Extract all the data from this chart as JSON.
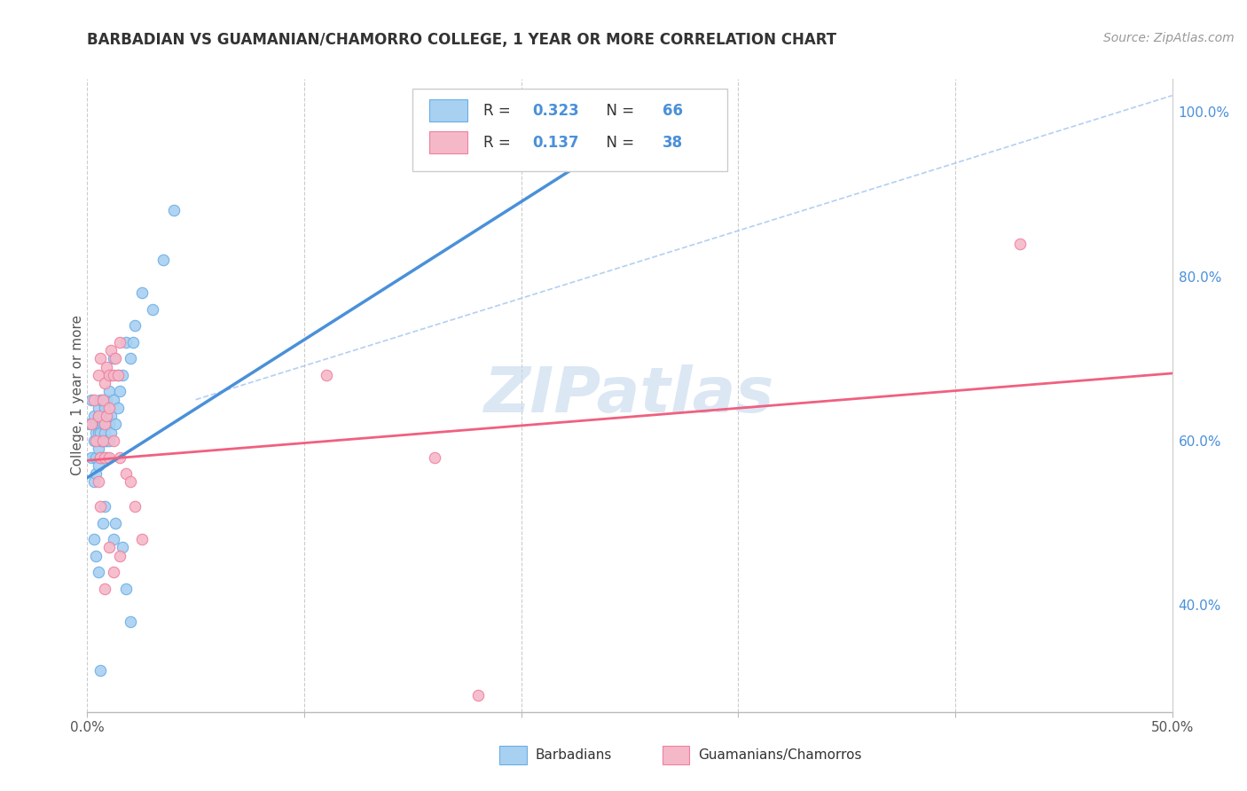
{
  "title": "BARBADIAN VS GUAMANIAN/CHAMORRO COLLEGE, 1 YEAR OR MORE CORRELATION CHART",
  "source": "Source: ZipAtlas.com",
  "ylabel": "College, 1 year or more",
  "x_min": 0.0,
  "x_max": 0.5,
  "y_min": 0.27,
  "y_max": 1.04,
  "y_ticks_right": [
    0.4,
    0.6,
    0.8,
    1.0
  ],
  "y_tick_labels_right": [
    "40.0%",
    "60.0%",
    "80.0%",
    "100.0%"
  ],
  "blue_R": 0.323,
  "blue_N": 66,
  "pink_R": 0.137,
  "pink_N": 38,
  "legend_label_blue": "Barbadians",
  "legend_label_pink": "Guamanians/Chamorros",
  "blue_color": "#a8d0f0",
  "pink_color": "#f5b8c8",
  "blue_edge_color": "#6aaee8",
  "pink_edge_color": "#f080a0",
  "blue_line_color": "#4a90d9",
  "pink_line_color": "#f06080",
  "diag_line_color": "#a0c4f0",
  "watermark": "ZIPatlas",
  "blue_scatter_x": [
    0.001,
    0.002,
    0.002,
    0.003,
    0.003,
    0.003,
    0.004,
    0.004,
    0.004,
    0.004,
    0.005,
    0.005,
    0.005,
    0.005,
    0.005,
    0.006,
    0.006,
    0.006,
    0.006,
    0.006,
    0.007,
    0.007,
    0.007,
    0.007,
    0.007,
    0.008,
    0.008,
    0.008,
    0.008,
    0.009,
    0.009,
    0.009,
    0.009,
    0.01,
    0.01,
    0.01,
    0.011,
    0.011,
    0.011,
    0.012,
    0.012,
    0.013,
    0.014,
    0.014,
    0.015,
    0.016,
    0.018,
    0.02,
    0.021,
    0.022,
    0.003,
    0.004,
    0.005,
    0.007,
    0.008,
    0.012,
    0.013,
    0.016,
    0.018,
    0.02,
    0.025,
    0.03,
    0.035,
    0.04,
    0.26,
    0.006
  ],
  "blue_scatter_y": [
    0.62,
    0.58,
    0.65,
    0.6,
    0.55,
    0.63,
    0.58,
    0.61,
    0.56,
    0.62,
    0.59,
    0.63,
    0.61,
    0.57,
    0.64,
    0.6,
    0.62,
    0.65,
    0.58,
    0.61,
    0.63,
    0.6,
    0.62,
    0.58,
    0.65,
    0.62,
    0.6,
    0.64,
    0.61,
    0.63,
    0.6,
    0.65,
    0.58,
    0.66,
    0.62,
    0.6,
    0.68,
    0.63,
    0.61,
    0.7,
    0.65,
    0.62,
    0.68,
    0.64,
    0.66,
    0.68,
    0.72,
    0.7,
    0.72,
    0.74,
    0.48,
    0.46,
    0.44,
    0.5,
    0.52,
    0.48,
    0.5,
    0.47,
    0.42,
    0.38,
    0.78,
    0.76,
    0.82,
    0.88,
    1.0,
    0.32
  ],
  "pink_scatter_x": [
    0.002,
    0.003,
    0.004,
    0.005,
    0.005,
    0.006,
    0.006,
    0.007,
    0.007,
    0.008,
    0.008,
    0.009,
    0.009,
    0.01,
    0.01,
    0.011,
    0.012,
    0.013,
    0.014,
    0.015,
    0.005,
    0.006,
    0.008,
    0.01,
    0.012,
    0.015,
    0.018,
    0.02,
    0.022,
    0.025,
    0.008,
    0.01,
    0.012,
    0.015,
    0.11,
    0.16,
    0.43,
    0.18
  ],
  "pink_scatter_y": [
    0.62,
    0.65,
    0.6,
    0.68,
    0.63,
    0.7,
    0.58,
    0.65,
    0.6,
    0.67,
    0.62,
    0.69,
    0.63,
    0.68,
    0.64,
    0.71,
    0.68,
    0.7,
    0.68,
    0.72,
    0.55,
    0.52,
    0.58,
    0.58,
    0.6,
    0.58,
    0.56,
    0.55,
    0.52,
    0.48,
    0.42,
    0.47,
    0.44,
    0.46,
    0.68,
    0.58,
    0.84,
    0.29
  ],
  "blue_line_x": [
    0.0,
    0.265
  ],
  "blue_line_y": [
    0.555,
    1.0
  ],
  "pink_line_x": [
    0.0,
    0.5
  ],
  "pink_line_y": [
    0.576,
    0.682
  ],
  "diag_line_x": [
    0.05,
    0.5
  ],
  "diag_line_y": [
    0.65,
    1.02
  ]
}
